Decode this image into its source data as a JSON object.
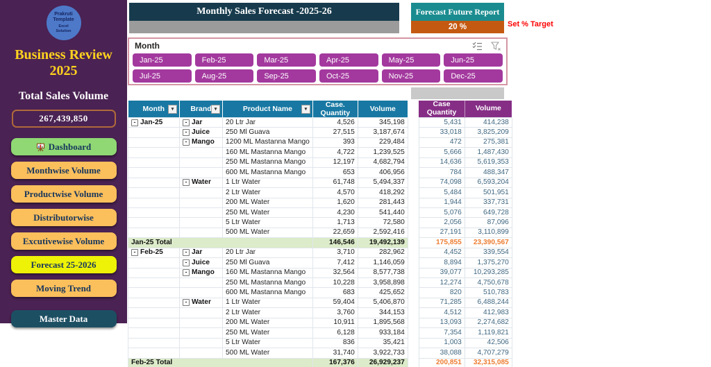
{
  "sidebar": {
    "logo_line1": "Prakruti Template",
    "logo_line2": "Excel Solution",
    "title_line1": "Business Review",
    "title_line2": "2025",
    "total_label": "Total Sales Volume",
    "total_value": "267,439,850",
    "buttons": [
      {
        "label": "Dashboard",
        "style": "green",
        "icon": "presentation"
      },
      {
        "label": "Monthwise Volume",
        "style": "orange"
      },
      {
        "label": "Productwise Volume",
        "style": "orange"
      },
      {
        "label": "Distributorwise",
        "style": "orange"
      },
      {
        "label": "Excutivewise Volume",
        "style": "orange"
      },
      {
        "label": "Forecast 25-2026",
        "style": "yellow"
      },
      {
        "label": "Moving Trend",
        "style": "orange"
      },
      {
        "label": "Master Data",
        "style": "teal"
      }
    ]
  },
  "header": {
    "title": "Monthly Sales Forecast -2025-26"
  },
  "forecast_report": {
    "title": "Forecast Future Report",
    "value": "20 %",
    "note": "Set % Target"
  },
  "slicer": {
    "label": "Month",
    "months": [
      "Jan-25",
      "Feb-25",
      "Mar-25",
      "Apr-25",
      "May-25",
      "Jun-25",
      "Jul-25",
      "Aug-25",
      "Sep-25",
      "Oct-25",
      "Nov-25",
      "Dec-25"
    ]
  },
  "table": {
    "headers": {
      "month": "Month",
      "brand": "Brand",
      "product": "Product Name",
      "case_qty": "Case. Quantity",
      "volume": "Volume"
    },
    "forecast_headers": {
      "case_qty": "Case Quantity",
      "volume": "Volume"
    },
    "rows": [
      {
        "m": "Jan-25",
        "b": "Jar",
        "p": "20 Ltr Jar",
        "q": "4,526",
        "v": "345,198",
        "fq": "5,431",
        "fv": "414,238"
      },
      {
        "b": "Juice",
        "p": "250 Ml Guava",
        "q": "27,515",
        "v": "3,187,674",
        "fq": "33,018",
        "fv": "3,825,209"
      },
      {
        "b": "Mango",
        "p": "1200 ML Mastanna Mango",
        "q": "393",
        "v": "229,484",
        "fq": "472",
        "fv": "275,381"
      },
      {
        "p": "160 ML Mastanna Mango",
        "q": "4,722",
        "v": "1,239,525",
        "fq": "5,666",
        "fv": "1,487,430"
      },
      {
        "p": "250 ML Mastanna Mango",
        "q": "12,197",
        "v": "4,682,794",
        "fq": "14,636",
        "fv": "5,619,353"
      },
      {
        "p": "600 ML Mastanna Mango",
        "q": "653",
        "v": "406,956",
        "fq": "784",
        "fv": "488,347"
      },
      {
        "b": "Water",
        "p": "1 Ltr Water",
        "q": "61,748",
        "v": "5,494,337",
        "fq": "74,098",
        "fv": "6,593,204"
      },
      {
        "p": "2 Ltr Water",
        "q": "4,570",
        "v": "418,292",
        "fq": "5,484",
        "fv": "501,951"
      },
      {
        "p": "200 ML Water",
        "q": "1,620",
        "v": "281,443",
        "fq": "1,944",
        "fv": "337,731"
      },
      {
        "p": "250 ML Water",
        "q": "4,230",
        "v": "541,440",
        "fq": "5,076",
        "fv": "649,728"
      },
      {
        "p": "5 Ltr Water",
        "q": "1,713",
        "v": "72,580",
        "fq": "2,056",
        "fv": "87,096"
      },
      {
        "p": "500 ML Water",
        "q": "22,659",
        "v": "2,592,416",
        "fq": "27,191",
        "fv": "3,110,899"
      },
      {
        "total": true,
        "m": "Jan-25 Total",
        "q": "146,546",
        "v": "19,492,139",
        "fq": "175,855",
        "fv": "23,390,567"
      },
      {
        "m": "Feb-25",
        "b": "Jar",
        "p": "20 Ltr Jar",
        "q": "3,710",
        "v": "282,962",
        "fq": "4,452",
        "fv": "339,554"
      },
      {
        "b": "Juice",
        "p": "250 Ml Guava",
        "q": "7,412",
        "v": "1,146,059",
        "fq": "8,894",
        "fv": "1,375,270"
      },
      {
        "b": "Mango",
        "p": "160 ML Mastanna Mango",
        "q": "32,564",
        "v": "8,577,738",
        "fq": "39,077",
        "fv": "10,293,285"
      },
      {
        "p": "250 ML Mastanna Mango",
        "q": "10,228",
        "v": "3,958,898",
        "fq": "12,274",
        "fv": "4,750,678"
      },
      {
        "p": "600 ML Mastanna Mango",
        "q": "683",
        "v": "425,652",
        "fq": "820",
        "fv": "510,783"
      },
      {
        "b": "Water",
        "p": "1 Ltr Water",
        "q": "59,404",
        "v": "5,406,870",
        "fq": "71,285",
        "fv": "6,488,244"
      },
      {
        "p": "2 Ltr Water",
        "q": "3,760",
        "v": "344,153",
        "fq": "4,512",
        "fv": "412,983"
      },
      {
        "p": "200 ML Water",
        "q": "10,911",
        "v": "1,895,568",
        "fq": "13,093",
        "fv": "2,274,682"
      },
      {
        "p": "250 ML Water",
        "q": "6,128",
        "v": "933,184",
        "fq": "7,354",
        "fv": "1,119,821"
      },
      {
        "p": "5 Ltr Water",
        "q": "836",
        "v": "35,421",
        "fq": "1,003",
        "fv": "42,506"
      },
      {
        "p": "500 ML Water",
        "q": "31,740",
        "v": "3,922,733",
        "fq": "38,088",
        "fv": "4,707,279"
      },
      {
        "total": true,
        "m": "Feb-25 Total",
        "q": "167,376",
        "v": "26,929,237",
        "fq": "200,851",
        "fv": "32,315,085"
      }
    ]
  },
  "colors": {
    "sidebar_purple": "#4a2253",
    "topbar_navy": "#173b4d",
    "report_teal": "#1a8c90",
    "target_orange": "#c45911",
    "slicer_magenta": "#a3399e",
    "header_teal": "#1878a3",
    "forecast_purple": "#862e86",
    "total_row_green": "#dcebc9",
    "total_text_orange": "#ed7d31",
    "button_orange": "#fbbf5c",
    "button_green": "#8fd874",
    "highlight_yellow": "#eef207",
    "note_red": "#fe0000"
  }
}
